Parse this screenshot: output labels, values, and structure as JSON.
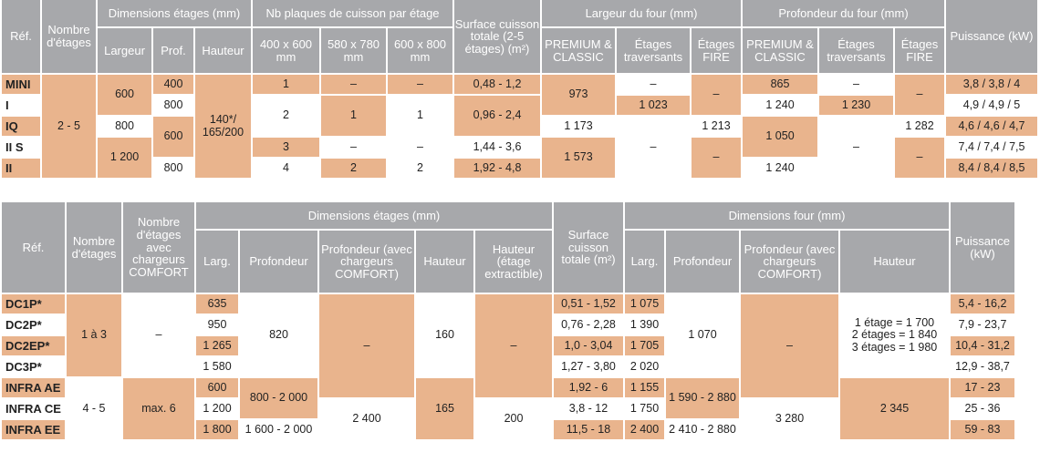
{
  "table1": {
    "headers": {
      "ref": "Réf.",
      "nb_etages": "Nombre d'étages",
      "dim_etages": "Dimensions étages (mm)",
      "largeur": "Largeur",
      "prof": "Prof.",
      "hauteur": "Hauteur",
      "nb_plaques": "Nb plaques de cuisson par étage",
      "p400": "400 x 600 mm",
      "p580": "580 x 780 mm",
      "p600": "600 x 800 mm",
      "surface": "Surface cuisson totale (2-5 étages) (m²)",
      "largeur_four": "Largeur du four (mm)",
      "premium": "PREMIUM & CLASSIC",
      "traversants": "Étages traversants",
      "fire": "Étages FIRE",
      "profondeur_four": "Profondeur du four (mm)",
      "puissance": "Puissance (kW)"
    },
    "refs": [
      "MINI",
      "I",
      "IQ",
      "II S",
      "II"
    ],
    "nb_etages": "2 - 5",
    "largeur": [
      "600",
      "800",
      "1 200"
    ],
    "prof": [
      "400",
      "800",
      "600",
      "800"
    ],
    "hauteur": "140*/ 165/200",
    "p400": [
      "1",
      "2",
      "3",
      "4"
    ],
    "p580": [
      "–",
      "1",
      "–",
      "2"
    ],
    "p600": [
      "–",
      "1",
      "–",
      "2"
    ],
    "surface": [
      "0,48 - 1,2",
      "0,96 - 2,4",
      "1,44 - 3,6",
      "1,92 - 4,8"
    ],
    "larg_premium": [
      "973",
      "1 173",
      "1 573"
    ],
    "larg_trav": [
      "–",
      "1 023",
      "–"
    ],
    "larg_fire": [
      "–",
      "1 213",
      "–"
    ],
    "prof_premium": [
      "865",
      "1 240",
      "1 050",
      "1 240"
    ],
    "prof_trav": [
      "–",
      "1 230",
      "–"
    ],
    "prof_fire": [
      "–",
      "1 282",
      "–"
    ],
    "puissance": [
      "3,8 / 3,8 / 4",
      "4,9 / 4,9 / 5",
      "4,6 / 4,6 / 4,7",
      "7,4 / 7,4 / 7,5",
      "8,4 / 8,4 / 8,5"
    ]
  },
  "table2": {
    "headers": {
      "ref": "Réf.",
      "nb_etages": "Nombre d'étages",
      "nb_comfort": "Nombre d'étages avec chargeurs COMFORT",
      "dim_etages": "Dimensions étages (mm)",
      "larg": "Larg.",
      "profondeur": "Profondeur",
      "profondeur_comfort": "Profondeur (avec chargeurs COMFORT)",
      "hauteur": "Hauteur",
      "hauteur_extr": "Hauteur (étage extractible)",
      "surface": "Surface cuisson totale (m²)",
      "dim_four": "Dimensions four (mm)",
      "larg_four": "Larg.",
      "profondeur_four": "Profondeur",
      "profondeur_four_comfort": "Profondeur (avec chargeurs COMFORT)",
      "hauteur_four": "Hauteur",
      "puissance": "Puissance (kW)"
    },
    "refs": [
      "DC1P*",
      "DC2P*",
      "DC2EP*",
      "DC3P*",
      "INFRA AE",
      "INFRA CE",
      "INFRA EE"
    ],
    "nb_etages": [
      "1 à 3",
      "4 - 5"
    ],
    "nb_comfort": [
      "–",
      "max. 6"
    ],
    "larg": [
      "635",
      "950",
      "1 265",
      "1 580",
      "600",
      "1 200",
      "1 800"
    ],
    "profondeur": [
      "820",
      "800 - 2 000",
      "1 600 - 2 000"
    ],
    "profondeur_comfort": [
      "–",
      "2 400"
    ],
    "hauteur": [
      "160",
      "165"
    ],
    "hauteur_extr": [
      "–",
      "200"
    ],
    "surface": [
      "0,51 - 1,52",
      "0,76 - 2,28",
      "1,0 - 3,04",
      "1,27 - 3,80",
      "1,92 - 6",
      "3,8 - 12",
      "11,5 - 18"
    ],
    "larg_four": [
      "1 075",
      "1 390",
      "1 705",
      "2 020",
      "1 155",
      "1 750",
      "2 400"
    ],
    "profondeur_four": [
      "1 070",
      "1 590 - 2 880",
      "2 410 - 2 880"
    ],
    "profondeur_four_comfort": [
      "–",
      "3 280"
    ],
    "hauteur_four": [
      "1 étage = 1 700",
      "2 étages = 1 840",
      "3 étages = 1 980",
      "2 345"
    ],
    "puissance": [
      "5,4 - 16,2",
      "7,9 - 23,7",
      "10,4 - 31,2",
      "12,9 - 38,7",
      "17 - 23",
      "25 - 36",
      "59 - 83"
    ]
  },
  "colors": {
    "header": "#a7a8ab",
    "orange": "#e9b48d",
    "white": "#ffffff",
    "text": "#222222"
  }
}
